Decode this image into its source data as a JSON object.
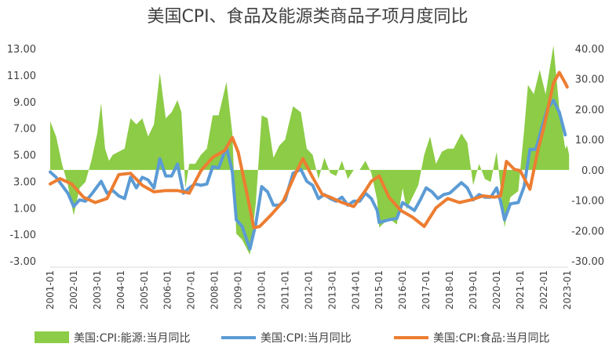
{
  "chart_data": {
    "type": "line",
    "title": "美国CPI、食品及能源类商品子项月度同比",
    "left_axis": {
      "ylim": [
        -3,
        13
      ],
      "ticks": [
        -3,
        -1,
        1,
        3,
        5,
        7,
        9,
        11,
        13
      ],
      "tick_labels": [
        "-3.00",
        "-1.00",
        "1.00",
        "3.00",
        "5.00",
        "7.00",
        "9.00",
        "11.00",
        "13.00"
      ]
    },
    "right_axis": {
      "ylim": [
        -30,
        40
      ],
      "ticks": [
        -30,
        -20,
        -10,
        0,
        10,
        20,
        30,
        40
      ],
      "tick_labels": [
        "-30.00",
        "-20.00",
        "-10.00",
        "0.00",
        "10.00",
        "20.00",
        "30.00",
        "40.00"
      ]
    },
    "x_tick_labels": [
      "2001-01",
      "2002-01",
      "2003-01",
      "2004-01",
      "2005-01",
      "2006-01",
      "2007-01",
      "2008-01",
      "2009-01",
      "2010-01",
      "2011-01",
      "2012-01",
      "2013-01",
      "2014-01",
      "2015-01",
      "2016-01",
      "2017-01",
      "2018-01",
      "2019-01",
      "2020-01",
      "2021-01",
      "2022-01",
      "2023-01"
    ],
    "grid": false,
    "legend_position": "bottom",
    "series": [
      {
        "name": "美国:CPI:能源:当月同比",
        "type": "area",
        "axis": "right",
        "color": "#8ccc46",
        "points": [
          [
            "2001-01",
            16
          ],
          [
            "2001-04",
            11
          ],
          [
            "2001-07",
            2
          ],
          [
            "2001-10",
            -5
          ],
          [
            "2002-01",
            -15
          ],
          [
            "2002-04",
            -6
          ],
          [
            "2002-07",
            -4
          ],
          [
            "2002-10",
            3
          ],
          [
            "2003-01",
            12
          ],
          [
            "2003-03",
            22
          ],
          [
            "2003-05",
            7
          ],
          [
            "2003-07",
            3
          ],
          [
            "2003-09",
            5
          ],
          [
            "2003-12",
            6
          ],
          [
            "2004-03",
            7
          ],
          [
            "2004-06",
            17
          ],
          [
            "2004-09",
            15
          ],
          [
            "2004-12",
            17
          ],
          [
            "2005-03",
            11
          ],
          [
            "2005-06",
            15
          ],
          [
            "2005-09",
            32
          ],
          [
            "2005-12",
            17
          ],
          [
            "2006-03",
            19
          ],
          [
            "2006-06",
            23
          ],
          [
            "2006-08",
            19
          ],
          [
            "2006-10",
            -6
          ],
          [
            "2006-12",
            2
          ],
          [
            "2007-03",
            2
          ],
          [
            "2007-06",
            5
          ],
          [
            "2007-09",
            7
          ],
          [
            "2007-12",
            18
          ],
          [
            "2008-03",
            18
          ],
          [
            "2008-07",
            29
          ],
          [
            "2008-10",
            12
          ],
          [
            "2008-12",
            -21
          ],
          [
            "2009-03",
            -23
          ],
          [
            "2009-07",
            -28
          ],
          [
            "2009-10",
            -11
          ],
          [
            "2010-01",
            18
          ],
          [
            "2010-04",
            17
          ],
          [
            "2010-07",
            4
          ],
          [
            "2010-10",
            8
          ],
          [
            "2011-01",
            10
          ],
          [
            "2011-05",
            21
          ],
          [
            "2011-09",
            19
          ],
          [
            "2011-12",
            7
          ],
          [
            "2012-03",
            5
          ],
          [
            "2012-06",
            -3
          ],
          [
            "2012-09",
            4
          ],
          [
            "2012-12",
            -1
          ],
          [
            "2013-03",
            -2
          ],
          [
            "2013-06",
            3
          ],
          [
            "2013-09",
            -3
          ],
          [
            "2013-12",
            0
          ],
          [
            "2014-03",
            0
          ],
          [
            "2014-06",
            3
          ],
          [
            "2014-09",
            -1
          ],
          [
            "2014-12",
            -10
          ],
          [
            "2015-01",
            -19
          ],
          [
            "2015-06",
            -16
          ],
          [
            "2015-10",
            -18
          ],
          [
            "2016-01",
            -6
          ],
          [
            "2016-03",
            -13
          ],
          [
            "2016-06",
            -9
          ],
          [
            "2016-09",
            -5
          ],
          [
            "2016-12",
            5
          ],
          [
            "2017-03",
            11
          ],
          [
            "2017-06",
            2
          ],
          [
            "2017-09",
            6
          ],
          [
            "2017-12",
            7
          ],
          [
            "2018-03",
            7
          ],
          [
            "2018-07",
            12
          ],
          [
            "2018-10",
            9
          ],
          [
            "2019-01",
            -5
          ],
          [
            "2019-04",
            2
          ],
          [
            "2019-07",
            -3
          ],
          [
            "2019-10",
            -4
          ],
          [
            "2020-01",
            6
          ],
          [
            "2020-03",
            -6
          ],
          [
            "2020-05",
            -19
          ],
          [
            "2020-08",
            -9
          ],
          [
            "2020-12",
            -7
          ],
          [
            "2021-03",
            13
          ],
          [
            "2021-05",
            28
          ],
          [
            "2021-08",
            25
          ],
          [
            "2021-11",
            33
          ],
          [
            "2022-02",
            25
          ],
          [
            "2022-06",
            41
          ],
          [
            "2022-09",
            20
          ],
          [
            "2022-12",
            7
          ],
          [
            "2023-01",
            8
          ],
          [
            "2023-02",
            5
          ]
        ]
      },
      {
        "name": "美国:CPI:当月同比",
        "type": "line",
        "axis": "left",
        "color": "#5b9bd5",
        "points": [
          [
            "2001-01",
            3.7
          ],
          [
            "2001-04",
            3.3
          ],
          [
            "2001-07",
            2.7
          ],
          [
            "2001-10",
            2.1
          ],
          [
            "2002-01",
            1.1
          ],
          [
            "2002-04",
            1.6
          ],
          [
            "2002-07",
            1.5
          ],
          [
            "2002-10",
            2.0
          ],
          [
            "2003-01",
            2.6
          ],
          [
            "2003-03",
            3.0
          ],
          [
            "2003-06",
            2.1
          ],
          [
            "2003-09",
            2.3
          ],
          [
            "2003-12",
            1.9
          ],
          [
            "2004-03",
            1.7
          ],
          [
            "2004-06",
            3.3
          ],
          [
            "2004-09",
            2.5
          ],
          [
            "2004-12",
            3.3
          ],
          [
            "2005-03",
            3.1
          ],
          [
            "2005-06",
            2.5
          ],
          [
            "2005-09",
            4.7
          ],
          [
            "2005-12",
            3.4
          ],
          [
            "2006-03",
            3.4
          ],
          [
            "2006-06",
            4.3
          ],
          [
            "2006-09",
            2.1
          ],
          [
            "2006-12",
            2.5
          ],
          [
            "2007-03",
            2.8
          ],
          [
            "2007-06",
            2.7
          ],
          [
            "2007-09",
            2.8
          ],
          [
            "2007-12",
            4.1
          ],
          [
            "2008-03",
            4.0
          ],
          [
            "2008-07",
            5.6
          ],
          [
            "2008-10",
            3.7
          ],
          [
            "2008-12",
            0.1
          ],
          [
            "2009-03",
            -0.4
          ],
          [
            "2009-07",
            -2.1
          ],
          [
            "2009-10",
            -0.2
          ],
          [
            "2010-01",
            2.6
          ],
          [
            "2010-04",
            2.2
          ],
          [
            "2010-07",
            1.2
          ],
          [
            "2010-10",
            1.2
          ],
          [
            "2011-01",
            1.6
          ],
          [
            "2011-05",
            3.6
          ],
          [
            "2011-09",
            3.9
          ],
          [
            "2011-12",
            3.0
          ],
          [
            "2012-03",
            2.7
          ],
          [
            "2012-06",
            1.7
          ],
          [
            "2012-09",
            2.0
          ],
          [
            "2012-12",
            1.7
          ],
          [
            "2013-03",
            1.5
          ],
          [
            "2013-06",
            1.8
          ],
          [
            "2013-09",
            1.2
          ],
          [
            "2013-12",
            1.5
          ],
          [
            "2014-03",
            1.5
          ],
          [
            "2014-06",
            2.1
          ],
          [
            "2014-09",
            1.7
          ],
          [
            "2014-12",
            0.8
          ],
          [
            "2015-01",
            -0.1
          ],
          [
            "2015-06",
            0.1
          ],
          [
            "2015-10",
            0.2
          ],
          [
            "2016-01",
            1.4
          ],
          [
            "2016-04",
            1.1
          ],
          [
            "2016-07",
            0.8
          ],
          [
            "2016-10",
            1.6
          ],
          [
            "2017-01",
            2.5
          ],
          [
            "2017-04",
            2.2
          ],
          [
            "2017-07",
            1.7
          ],
          [
            "2017-10",
            2.0
          ],
          [
            "2018-01",
            2.1
          ],
          [
            "2018-04",
            2.5
          ],
          [
            "2018-07",
            2.9
          ],
          [
            "2018-10",
            2.5
          ],
          [
            "2019-01",
            1.6
          ],
          [
            "2019-04",
            2.0
          ],
          [
            "2019-07",
            1.8
          ],
          [
            "2019-10",
            1.8
          ],
          [
            "2020-01",
            2.5
          ],
          [
            "2020-03",
            1.5
          ],
          [
            "2020-05",
            0.1
          ],
          [
            "2020-08",
            1.3
          ],
          [
            "2020-12",
            1.4
          ],
          [
            "2021-03",
            2.6
          ],
          [
            "2021-06",
            5.4
          ],
          [
            "2021-09",
            5.4
          ],
          [
            "2021-12",
            7.0
          ],
          [
            "2022-03",
            8.5
          ],
          [
            "2022-06",
            9.1
          ],
          [
            "2022-09",
            8.2
          ],
          [
            "2022-12",
            6.5
          ]
        ]
      },
      {
        "name": "美国:CPI:食品:当月同比",
        "type": "line",
        "axis": "left",
        "color": "#ed7d31",
        "points": [
          [
            "2001-01",
            2.8
          ],
          [
            "2001-06",
            3.2
          ],
          [
            "2001-12",
            2.8
          ],
          [
            "2002-06",
            1.8
          ],
          [
            "2002-12",
            1.4
          ],
          [
            "2003-06",
            1.7
          ],
          [
            "2003-12",
            3.5
          ],
          [
            "2004-06",
            3.6
          ],
          [
            "2004-12",
            2.7
          ],
          [
            "2005-06",
            2.2
          ],
          [
            "2005-12",
            2.3
          ],
          [
            "2006-06",
            2.3
          ],
          [
            "2006-12",
            2.1
          ],
          [
            "2007-06",
            3.8
          ],
          [
            "2007-12",
            4.8
          ],
          [
            "2008-06",
            5.3
          ],
          [
            "2008-10",
            6.3
          ],
          [
            "2009-01",
            5.2
          ],
          [
            "2009-06",
            1.7
          ],
          [
            "2009-09",
            -0.5
          ],
          [
            "2009-12",
            -0.4
          ],
          [
            "2010-06",
            0.5
          ],
          [
            "2010-12",
            1.5
          ],
          [
            "2011-06",
            3.5
          ],
          [
            "2011-10",
            4.7
          ],
          [
            "2012-03",
            3.3
          ],
          [
            "2012-08",
            2.0
          ],
          [
            "2012-12",
            1.8
          ],
          [
            "2013-06",
            1.4
          ],
          [
            "2013-12",
            1.1
          ],
          [
            "2014-06",
            2.3
          ],
          [
            "2014-09",
            3.0
          ],
          [
            "2015-01",
            3.4
          ],
          [
            "2015-06",
            1.8
          ],
          [
            "2015-12",
            0.8
          ],
          [
            "2016-06",
            0.3
          ],
          [
            "2016-12",
            -0.4
          ],
          [
            "2017-06",
            1.0
          ],
          [
            "2017-12",
            1.7
          ],
          [
            "2018-06",
            1.4
          ],
          [
            "2018-12",
            1.6
          ],
          [
            "2019-06",
            1.9
          ],
          [
            "2019-12",
            1.8
          ],
          [
            "2020-03",
            1.9
          ],
          [
            "2020-06",
            4.5
          ],
          [
            "2020-10",
            3.9
          ],
          [
            "2021-01",
            3.8
          ],
          [
            "2021-06",
            2.4
          ],
          [
            "2021-10",
            5.3
          ],
          [
            "2022-01",
            7.0
          ],
          [
            "2022-06",
            10.4
          ],
          [
            "2022-09",
            11.2
          ],
          [
            "2022-12",
            10.4
          ],
          [
            "2023-01",
            10.1
          ]
        ]
      }
    ]
  },
  "legend": [
    {
      "label": "美国:CPI:能源:当月同比",
      "color": "#8ccc46",
      "kind": "area"
    },
    {
      "label": "美国:CPI:当月同比",
      "color": "#5b9bd5",
      "kind": "line"
    },
    {
      "label": "美国:CPI:食品:当月同比",
      "color": "#ed7d31",
      "kind": "line"
    }
  ]
}
